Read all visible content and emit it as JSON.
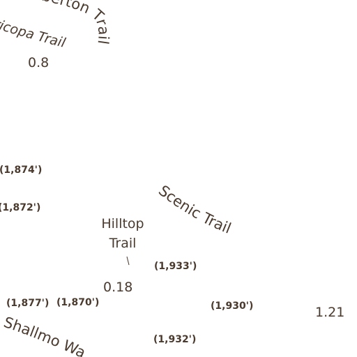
{
  "map": {
    "background": "#ffffff",
    "label_color": "#4a3a2e",
    "trails": {
      "pemberton": {
        "name": "Pemberton Trail"
      },
      "maricopa": {
        "name": "Maricopa Trail"
      },
      "scenic": {
        "name": "Scenic Trail"
      },
      "hilltop": {
        "line1": "Hilltop",
        "line2": "Trail"
      },
      "shallmo": {
        "name": "Shallmo Wash Trail"
      }
    },
    "distances": [
      {
        "id": "dist-maricopa",
        "label": "0.8"
      },
      {
        "id": "dist-hilltop",
        "label": "0.18"
      },
      {
        "id": "dist-east",
        "label": "1.21"
      }
    ],
    "elevations": [
      {
        "id": "elev-1874",
        "label": "(1,874')"
      },
      {
        "id": "elev-1872",
        "label": "(1,872')"
      },
      {
        "id": "elev-1933",
        "label": "(1,933')"
      },
      {
        "id": "elev-1877",
        "label": "(1,877')"
      },
      {
        "id": "elev-1870",
        "label": "(1,870')"
      },
      {
        "id": "elev-1930",
        "label": "(1,930')"
      },
      {
        "id": "elev-1932",
        "label": "(1,932')"
      }
    ]
  }
}
